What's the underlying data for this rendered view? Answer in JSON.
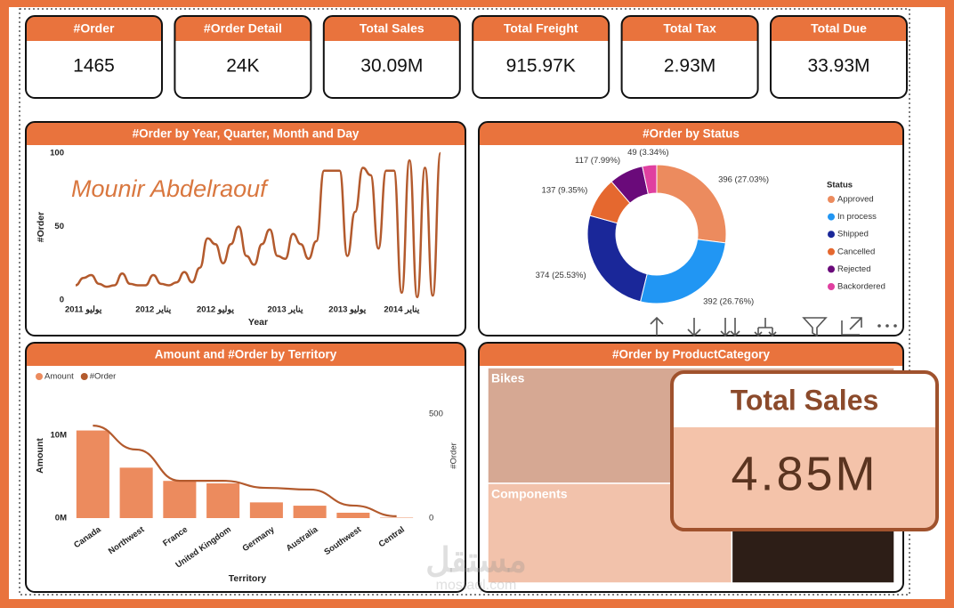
{
  "kpis": [
    {
      "title": "#Order",
      "value": "1465"
    },
    {
      "title": "#Order Detail",
      "value": "24K"
    },
    {
      "title": "Total Sales",
      "value": "30.09M"
    },
    {
      "title": "Total Freight",
      "value": "915.97K"
    },
    {
      "title": "Total Tax",
      "value": "2.93M"
    },
    {
      "title": "Total Due",
      "value": "33.93M"
    }
  ],
  "chart_data": [
    {
      "type": "line",
      "title": "#Order by Year, Quarter, Month and Day",
      "annotation": "Mounir Abdelraouf",
      "x_label": "Year",
      "y_label": "#Order",
      "color": "#b35a2d",
      "categories": [
        null,
        "يوليو 2011",
        null,
        null,
        null,
        null,
        null,
        null,
        null,
        null,
        "يناير 2012",
        null,
        null,
        null,
        null,
        null,
        null,
        null,
        "يوليو 2012",
        null,
        null,
        null,
        null,
        null,
        null,
        null,
        null,
        "يناير 2013",
        null,
        null,
        null,
        null,
        null,
        null,
        null,
        "يوليو 2013",
        null,
        null,
        null,
        null,
        null,
        null,
        "يناير 2014",
        null,
        null,
        null,
        null,
        null
      ],
      "values": [
        10,
        15,
        17,
        11,
        9,
        10,
        18,
        11,
        10,
        10,
        17,
        11,
        10,
        12,
        19,
        12,
        22,
        42,
        38,
        25,
        38,
        50,
        30,
        24,
        38,
        48,
        30,
        28,
        45,
        38,
        28,
        40,
        88,
        88,
        88,
        30,
        60,
        90,
        85,
        35,
        88,
        88,
        5,
        95,
        2,
        90,
        3,
        100
      ],
      "ylim": [
        0,
        100
      ],
      "yticks": [
        0,
        50,
        100
      ]
    },
    {
      "type": "donut",
      "title": "#Order by Status",
      "legend_title": "Status",
      "legend": "right",
      "categories": [
        "Approved",
        "In process",
        "Shipped",
        "Cancelled",
        "Rejected",
        "Backordered"
      ],
      "values": [
        396,
        392,
        374,
        137,
        117,
        49
      ],
      "value_labels": [
        "396 (27.03%)",
        "392 (26.76%)",
        "374 (25.53%)",
        "137 (9.35%)",
        "117 (7.99%)",
        "49 (3.34%)"
      ],
      "colors": [
        "#ec8b5e",
        "#2196f3",
        "#1a2799",
        "#e5682f",
        "#6a0a7a",
        "#e040a0"
      ]
    },
    {
      "type": "bar-line",
      "title": "Amount and #Order by Territory",
      "x_label": "Territory",
      "y_label": "Amount",
      "y2_label": "#Order",
      "legend": "top-left",
      "categories": [
        "Canada",
        "Northwest",
        "France",
        "United Kingdom",
        "Germany",
        "Australia",
        "Southwest",
        "Central"
      ],
      "series": [
        {
          "name": "Amount",
          "color": "#ec8b5e",
          "values": [
            10600000,
            6100000,
            4500000,
            4200000,
            1900000,
            1500000,
            650000,
            50000
          ]
        },
        {
          "name": "#Order",
          "color": "#b35a2d",
          "axis": "y2",
          "values": [
            444,
            329,
            179,
            179,
            145,
            137,
            60,
            9
          ]
        }
      ],
      "ylim": [
        0,
        12600000
      ],
      "yticks": [
        {
          "value": 0,
          "label": "0M"
        },
        {
          "value": 10000000,
          "label": "10M"
        }
      ],
      "y2lim": [
        0,
        500
      ],
      "y2ticks": [
        0,
        500
      ]
    },
    {
      "type": "treemap",
      "title": "#Order by ProductCategory",
      "categories": [
        "Bikes",
        "Components",
        null,
        null
      ],
      "values": [
        537,
        278,
        76,
        109
      ],
      "colors": [
        "#d6a893",
        "#f2c2ab",
        "#e07a4c",
        "#2d1e17"
      ]
    }
  ],
  "tooltip": {
    "title": "Total Sales",
    "value": "4.85M"
  },
  "watermark": {
    "arabic": "مستقل",
    "site": "mostaql.com"
  }
}
